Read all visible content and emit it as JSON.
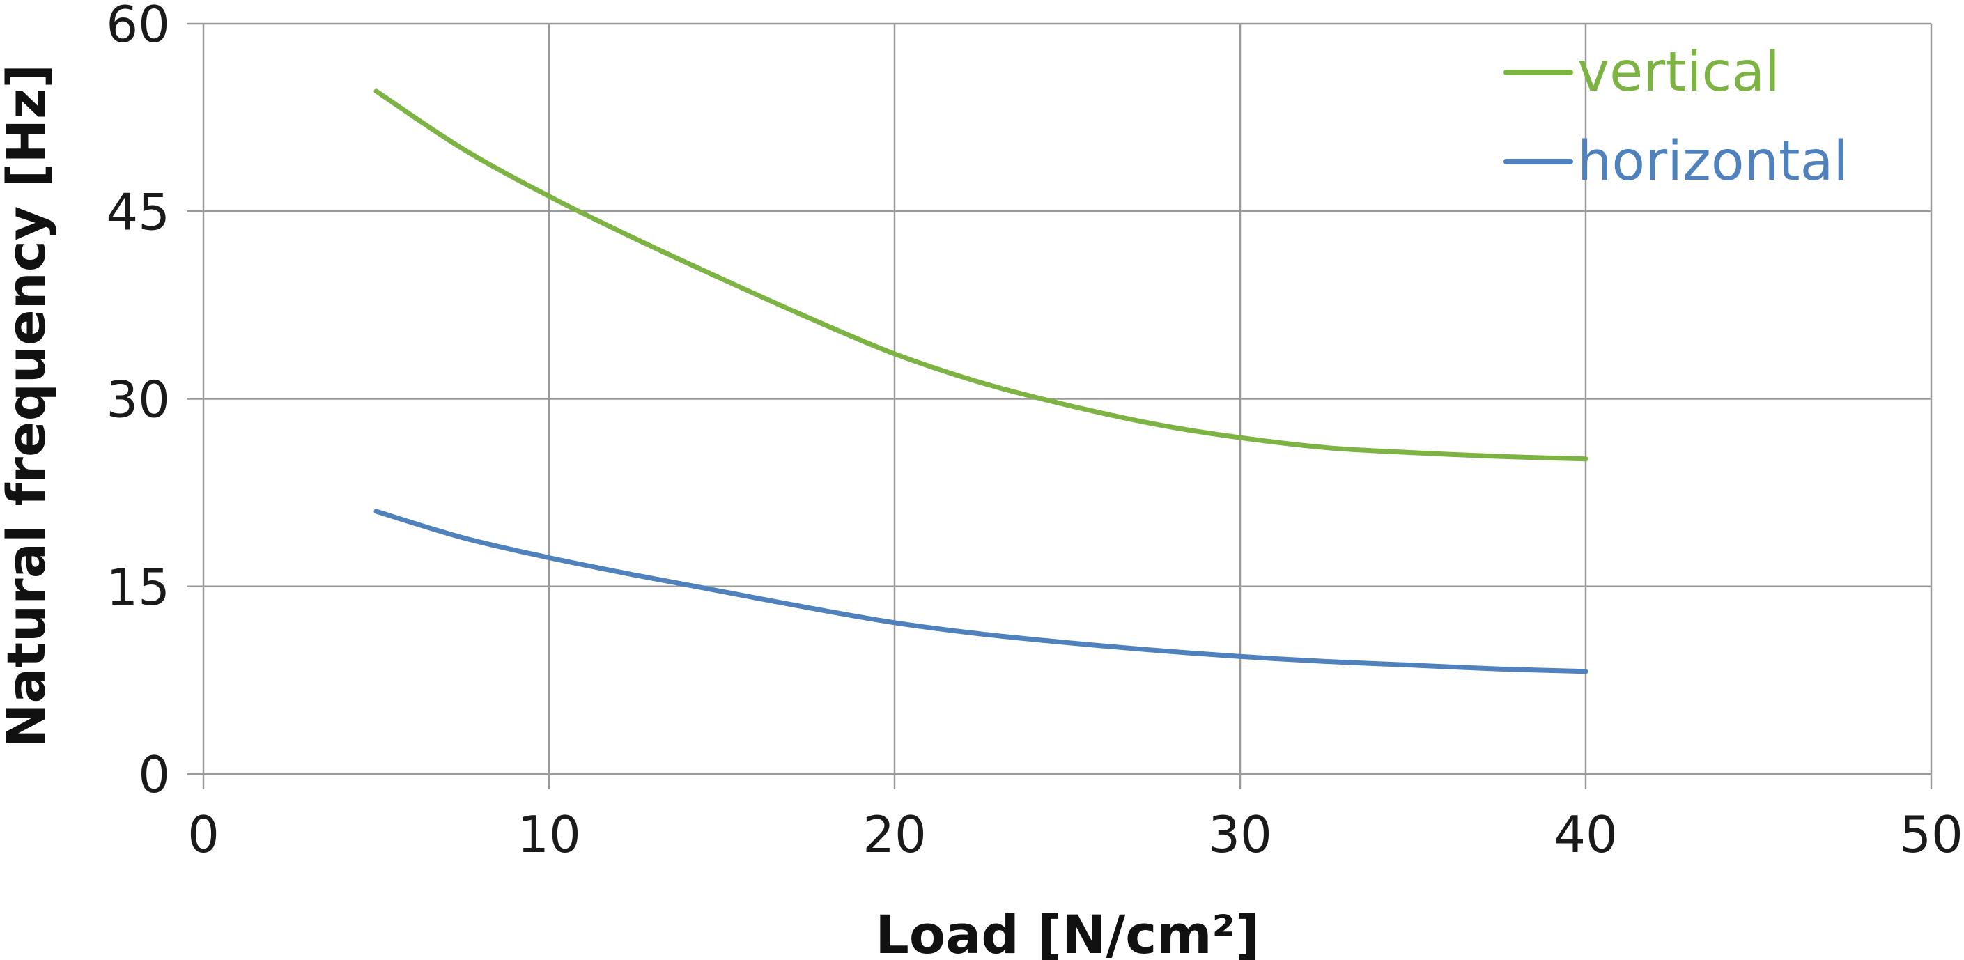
{
  "chart_data": {
    "type": "line",
    "title": "",
    "xlabel": "Load [N/cm²]",
    "ylabel": "Natural frequency [Hz]",
    "xlim": [
      0,
      50
    ],
    "ylim": [
      0,
      60
    ],
    "x_ticks": [
      0,
      10,
      20,
      30,
      40,
      50
    ],
    "y_ticks": [
      0,
      15,
      30,
      45,
      60
    ],
    "x_tick_labels": [
      "0",
      "10",
      "20",
      "30",
      "40",
      "50"
    ],
    "y_tick_labels": [
      "0",
      "15",
      "30",
      "45",
      "60"
    ],
    "grid": true,
    "legend_position": "top-right",
    "series": [
      {
        "name": "vertical",
        "color": "#7CB342",
        "x": [
          5,
          7.5,
          10,
          12.5,
          15,
          17.5,
          20,
          22.5,
          25,
          27.5,
          30,
          32.5,
          35,
          37.5,
          40
        ],
        "y": [
          54.6,
          50.0,
          46.2,
          42.8,
          39.6,
          36.5,
          33.6,
          31.3,
          29.5,
          28.0,
          26.9,
          26.1,
          25.7,
          25.4,
          25.2
        ]
      },
      {
        "name": "horizontal",
        "color": "#4F81BD",
        "x": [
          5,
          7.5,
          10,
          12.5,
          15,
          17.5,
          20,
          22.5,
          25,
          27.5,
          30,
          32.5,
          35,
          37.5,
          40
        ],
        "y": [
          21.0,
          18.9,
          17.3,
          15.9,
          14.6,
          13.3,
          12.1,
          11.2,
          10.5,
          9.9,
          9.4,
          9.0,
          8.7,
          8.4,
          8.2
        ]
      }
    ]
  }
}
